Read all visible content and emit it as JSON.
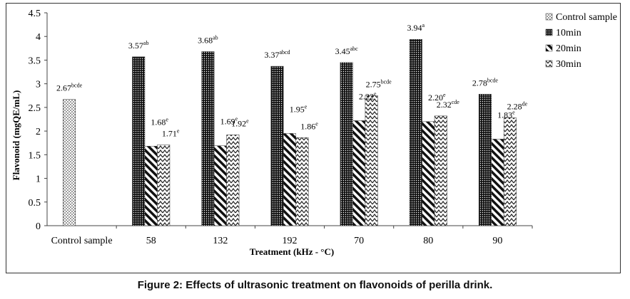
{
  "figure_caption": "Figure 2: Effects of ultrasonic treatment on flavonoids of perilla drink.",
  "chart_data": {
    "type": "bar",
    "xlabel": "Treatment (kHz - °C)",
    "ylabel": "Flavonoid (mgQE/mL)",
    "ylim": [
      0,
      4.5
    ],
    "yticks": [
      "0",
      "0.5",
      "1",
      "1.5",
      "2",
      "2.5",
      "3",
      "3.5",
      "4",
      "4.5"
    ],
    "categories": [
      "Control sample",
      "58",
      "132",
      "192",
      "70",
      "80",
      "90"
    ],
    "legend_position": "top-right",
    "grid": false,
    "series": [
      {
        "name": "Control sample",
        "pattern": "dots",
        "values": [
          2.67,
          null,
          null,
          null,
          null,
          null,
          null
        ],
        "labels": [
          {
            "v": "2.67",
            "s": "bcde"
          },
          null,
          null,
          null,
          null,
          null,
          null
        ]
      },
      {
        "name": "10min",
        "pattern": "dense-dots",
        "values": [
          null,
          3.57,
          3.68,
          3.37,
          3.45,
          3.94,
          2.78
        ],
        "labels": [
          null,
          {
            "v": "3.57",
            "s": "ab"
          },
          {
            "v": "3.68",
            "s": "ab"
          },
          {
            "v": "3.37",
            "s": "abcd"
          },
          {
            "v": "3.45",
            "s": "abc"
          },
          {
            "v": "3.94",
            "s": "a"
          },
          {
            "v": "2.78",
            "s": "bcde"
          }
        ]
      },
      {
        "name": "20min",
        "pattern": "diagonal",
        "values": [
          null,
          1.68,
          1.69,
          1.95,
          2.22,
          2.2,
          1.83
        ],
        "labels": [
          null,
          {
            "v": "1.68",
            "s": "e"
          },
          {
            "v": "1.69",
            "s": "e"
          },
          {
            "v": "1.95",
            "s": "e"
          },
          {
            "v": "2.22",
            "s": "e"
          },
          {
            "v": "2.20",
            "s": "e"
          },
          {
            "v": "1.83",
            "s": "e"
          }
        ]
      },
      {
        "name": "30min",
        "pattern": "zigzag",
        "values": [
          null,
          1.71,
          1.92,
          1.86,
          2.75,
          2.32,
          2.28
        ],
        "labels": [
          null,
          {
            "v": "1.71",
            "s": "e"
          },
          {
            "v": "1.92",
            "s": "e"
          },
          {
            "v": "1.86",
            "s": "e"
          },
          {
            "v": "2.75",
            "s": "bcde"
          },
          {
            "v": "2.32",
            "s": "cde"
          },
          {
            "v": "2.28",
            "s": "de"
          }
        ]
      }
    ]
  }
}
